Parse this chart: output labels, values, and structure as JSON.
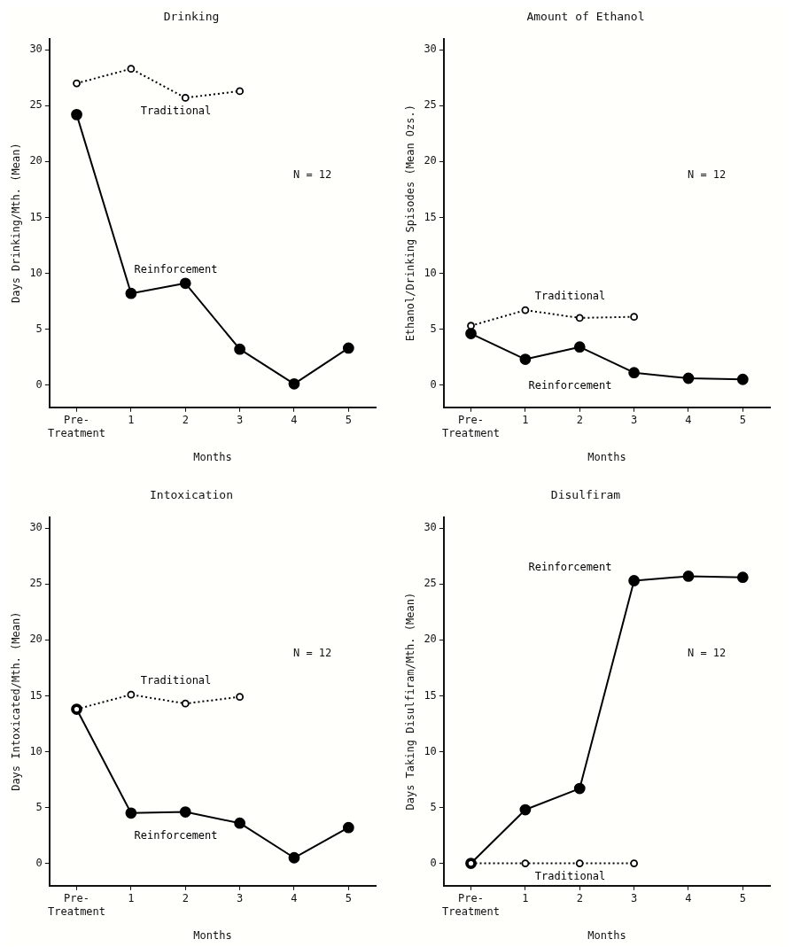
{
  "chart_data": [
    {
      "type": "line",
      "title": "Drinking",
      "xlabel": "Months",
      "ylabel": "Days Drinking/Mth. (Mean)",
      "categories": [
        "Pre-\nTreatment",
        "1",
        "2",
        "3",
        "4",
        "5"
      ],
      "series": [
        {
          "name": "Traditional",
          "color": "#000000",
          "line_style": "dotted",
          "values": [
            27.0,
            28.3,
            25.7,
            26.3,
            null,
            null
          ]
        },
        {
          "name": "Reinforcement",
          "color": "#000000",
          "line_style": "solid",
          "values": [
            24.2,
            8.2,
            9.1,
            3.2,
            0.1,
            3.3
          ]
        }
      ],
      "ylim": [
        -2,
        31
      ],
      "yticks": [
        0,
        5,
        10,
        15,
        20,
        25,
        30
      ],
      "marker": "circle",
      "grid": false,
      "legend": false,
      "annotations": [
        "N = 12"
      ]
    },
    {
      "type": "line",
      "title": "Amount of Ethanol",
      "xlabel": "Months",
      "ylabel": "Ethanol/Drinking Spisodes (Mean Ozs.)",
      "categories": [
        "Pre-\nTreatment",
        "1",
        "2",
        "3",
        "4",
        "5"
      ],
      "series": [
        {
          "name": "Traditional",
          "color": "#000000",
          "line_style": "dotted",
          "values": [
            5.3,
            6.7,
            6.0,
            6.1,
            null,
            null
          ]
        },
        {
          "name": "Reinforcement",
          "color": "#000000",
          "line_style": "solid",
          "values": [
            4.6,
            2.3,
            3.4,
            1.1,
            0.6,
            0.5
          ]
        }
      ],
      "ylim": [
        -2,
        31
      ],
      "yticks": [
        0,
        5,
        10,
        15,
        20,
        25,
        30
      ],
      "marker": "circle",
      "grid": false,
      "legend": false,
      "annotations": [
        "N = 12"
      ]
    },
    {
      "type": "line",
      "title": "Intoxication",
      "xlabel": "Months",
      "ylabel": "Days Intoxicated/Mth. (Mean)",
      "categories": [
        "Pre-\nTreatment",
        "1",
        "2",
        "3",
        "4",
        "5"
      ],
      "series": [
        {
          "name": "Traditional",
          "color": "#000000",
          "line_style": "dotted",
          "values": [
            13.8,
            15.1,
            14.3,
            14.9,
            null,
            null
          ]
        },
        {
          "name": "Reinforcement",
          "color": "#000000",
          "line_style": "solid",
          "values": [
            13.8,
            4.5,
            4.6,
            3.6,
            0.5,
            3.2
          ]
        }
      ],
      "ylim": [
        -2,
        31
      ],
      "yticks": [
        0,
        5,
        10,
        15,
        20,
        25,
        30
      ],
      "marker": "circle",
      "grid": false,
      "legend": false,
      "annotations": [
        "N = 12"
      ]
    },
    {
      "type": "line",
      "title": "Disulfiram",
      "xlabel": "Months",
      "ylabel": "Days Taking Disulfiram/Mth. (Mean)",
      "categories": [
        "Pre-\nTreatment",
        "1",
        "2",
        "3",
        "4",
        "5"
      ],
      "series": [
        {
          "name": "Traditional",
          "color": "#000000",
          "line_style": "dotted",
          "values": [
            0,
            0,
            0,
            0,
            null,
            null
          ]
        },
        {
          "name": "Reinforcement",
          "color": "#000000",
          "line_style": "solid",
          "values": [
            0,
            4.8,
            6.7,
            25.3,
            25.7,
            25.6
          ]
        }
      ],
      "ylim": [
        -2,
        31
      ],
      "yticks": [
        0,
        5,
        10,
        15,
        20,
        25,
        30
      ],
      "marker": "circle",
      "grid": false,
      "legend": false,
      "annotations": [
        "N = 12"
      ]
    }
  ]
}
